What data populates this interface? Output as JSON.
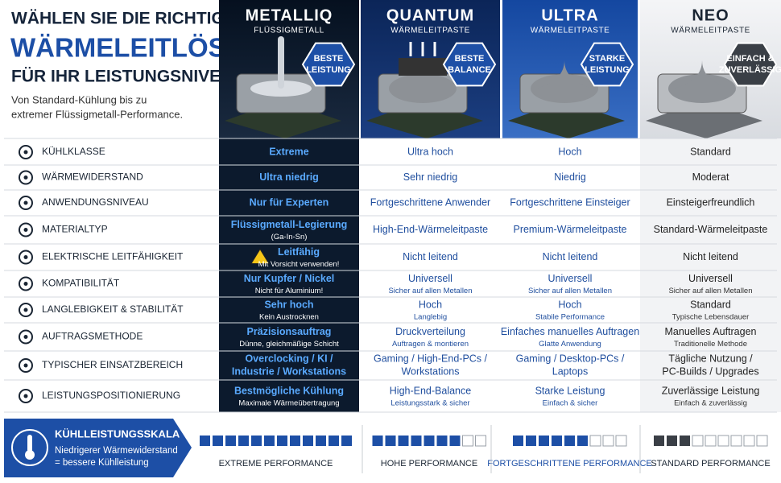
{
  "header": {
    "title": [
      "WÄHLEN SIE DIE RICHTIGE",
      "WÄRMELEITLÖSUNG",
      "FÜR IHR LEISTUNGSNIVEAU"
    ],
    "subtitle": [
      "Von Standard-Kühlung bis zu",
      "extremer Flüssigmetall-Performance."
    ]
  },
  "products": [
    {
      "name": "METALLIQ",
      "subtitle": "FLÜSSIGMETALL",
      "badge": [
        "BESTE",
        "LEISTUNG"
      ]
    },
    {
      "name": "QUANTUM",
      "subtitle": "WÄRMELEITPASTE",
      "badge": [
        "BESTE",
        "BALANCE"
      ]
    },
    {
      "name": "ULTRA",
      "subtitle": "WÄRMELEITPASTE",
      "badge": [
        "STARKE",
        "LEISTUNG"
      ]
    },
    {
      "name": "NEO",
      "subtitle": "WÄRMELEITPASTE",
      "badge": [
        "EINFACH &",
        "ZUVERLÄSSIG"
      ]
    }
  ],
  "rows": [
    {
      "label": "KÜHLKLASSE",
      "cells": [
        {
          "main": "Extreme"
        },
        {
          "main": "Ultra hoch"
        },
        {
          "main": "Hoch"
        },
        {
          "main": "Standard"
        }
      ]
    },
    {
      "label": "WÄRMEWIDERSTAND",
      "cells": [
        {
          "main": "Ultra niedrig"
        },
        {
          "main": "Sehr niedrig"
        },
        {
          "main": "Niedrig"
        },
        {
          "main": "Moderat"
        }
      ]
    },
    {
      "label": "ANWENDUNGSNIVEAU",
      "cells": [
        {
          "main": "Nur für Experten"
        },
        {
          "main": "Fortgeschrittene Anwender"
        },
        {
          "main": "Fortgeschrittene Einsteiger"
        },
        {
          "main": "Einsteigerfreundlich"
        }
      ]
    },
    {
      "label": "MATERIALTYP",
      "cells": [
        {
          "main": "Flüssigmetall-Legierung",
          "sub": "(Ga-In-Sn)"
        },
        {
          "main": "High-End-Wärmeleitpaste"
        },
        {
          "main": "Premium-Wärmeleitpaste"
        },
        {
          "main": "Standard-Wärmeleitpaste"
        }
      ]
    },
    {
      "label": "ELEKTRISCHE LEITFÄHIGKEIT",
      "cells": [
        {
          "main": "Leitfähig",
          "sub": "Mit Vorsicht verwenden!"
        },
        {
          "main": "Nicht leitend"
        },
        {
          "main": "Nicht leitend"
        },
        {
          "main": "Nicht leitend"
        }
      ]
    },
    {
      "label": "KOMPATIBILITÄT",
      "cells": [
        {
          "main": "Nur Kupfer / Nickel",
          "sub": "Nicht für Aluminium!"
        },
        {
          "main": "Universell",
          "sub": "Sicher auf allen Metallen"
        },
        {
          "main": "Universell",
          "sub": "Sicher auf allen Metallen"
        },
        {
          "main": "Universell",
          "sub": "Sicher auf allen Metallen"
        }
      ]
    },
    {
      "label": "LANGLEBIGKEIT & STABILITÄT",
      "cells": [
        {
          "main": "Sehr hoch",
          "sub": "Kein Austrocknen"
        },
        {
          "main": "Hoch",
          "sub": "Langlebig"
        },
        {
          "main": "Hoch",
          "sub": "Stabile Performance"
        },
        {
          "main": "Standard",
          "sub": "Typische Lebensdauer"
        }
      ]
    },
    {
      "label": "AUFTRAGSMETHODE",
      "cells": [
        {
          "main": "Präzisionsauftrag",
          "sub": "Dünne, gleichmäßige Schicht"
        },
        {
          "main": "Druckverteilung",
          "sub": "Auftragen & montieren"
        },
        {
          "main": "Einfaches manuelles Auftragen",
          "sub": "Glatte Anwendung"
        },
        {
          "main": "Manuelles Auftragen",
          "sub": "Traditionelle Methode"
        }
      ]
    },
    {
      "label": "TYPISCHER EINSATZBEREICH",
      "cells": [
        {
          "main": [
            "Overclocking / KI /",
            "Industrie / Workstations"
          ]
        },
        {
          "main": [
            "Gaming / High-End-PCs /",
            "Workstations"
          ]
        },
        {
          "main": [
            "Gaming / Desktop-PCs /",
            "Laptops"
          ]
        },
        {
          "main": [
            "Tägliche Nutzung /",
            "PC-Builds / Upgrades"
          ]
        }
      ]
    },
    {
      "label": "LEISTUNGSPOSITIONIERUNG",
      "cells": [
        {
          "main": "Bestmögliche Kühlung",
          "sub": "Maximale Wärmeübertragung"
        },
        {
          "main": "High-End-Balance",
          "sub": "Leistungsstark & sicher"
        },
        {
          "main": "Starke Leistung",
          "sub": "Einfach & sicher"
        },
        {
          "main": "Zuverlässige Leistung",
          "sub": "Einfach & zuverlässig"
        }
      ]
    }
  ],
  "scale": {
    "title": "KÜHLLEISTUNGSSKALA",
    "description": [
      "Niedrigerer Wärmewiderstand",
      "= bessere Kühlleistung"
    ],
    "levels": [
      {
        "label": "EXTREME PERFORMANCE",
        "filled": 12,
        "total": 12
      },
      {
        "label": "HOHE PERFORMANCE",
        "filled": 7,
        "total": 9
      },
      {
        "label": "FORTGESCHRITTENE PERFORMANCE",
        "filled": 6,
        "total": 9
      },
      {
        "label": "STANDARD PERFORMANCE",
        "filled": 3,
        "total": 9
      }
    ]
  }
}
